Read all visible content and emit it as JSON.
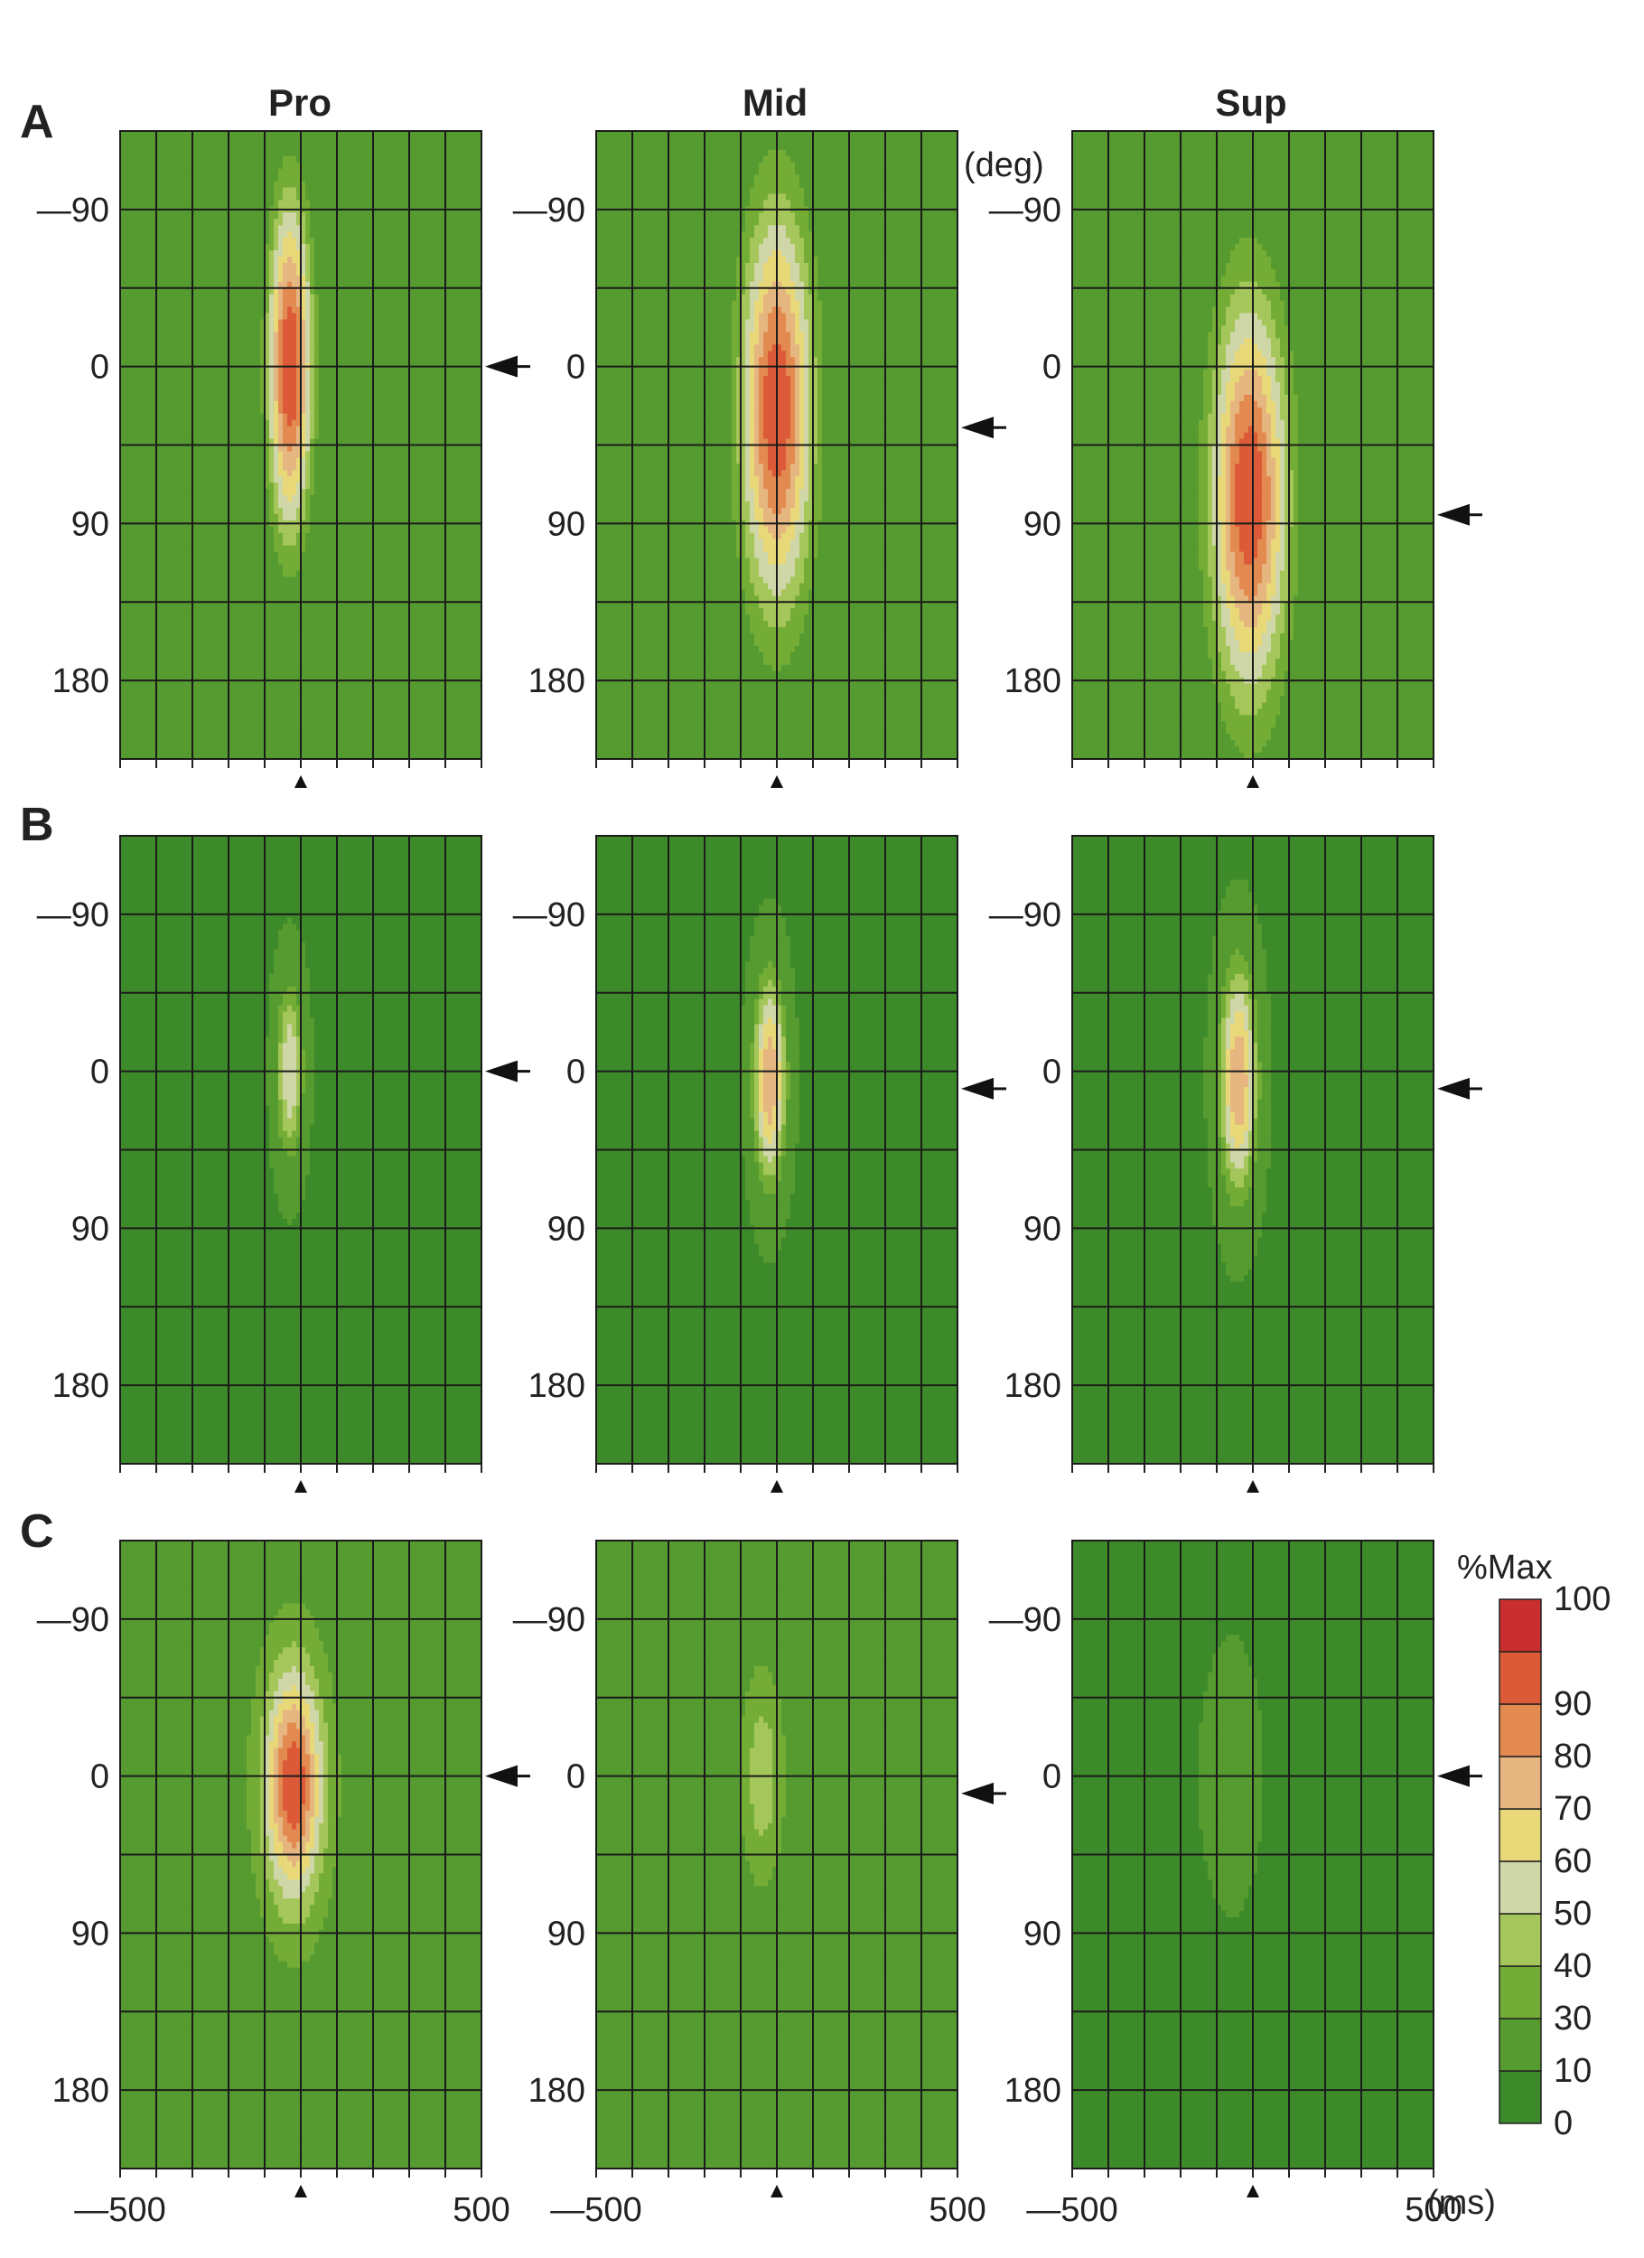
{
  "columns": [
    "Pro",
    "Mid",
    "Sup"
  ],
  "rows": [
    "A",
    "B",
    "C"
  ],
  "unit_angle": "(deg)",
  "unit_time": "(ms)",
  "colorbar": {
    "title": "%Max",
    "levels": [
      0,
      10,
      30,
      40,
      50,
      60,
      70,
      80,
      90,
      100
    ],
    "colors": [
      "#3d8a2a",
      "#559b30",
      "#74ad36",
      "#a5c65a",
      "#cfd7a8",
      "#e9d878",
      "#e6b680",
      "#e38a50",
      "#dc5a38",
      "#c92f2f"
    ]
  },
  "chart_data": {
    "type": "heatmap",
    "description_axes": {
      "ylabel": "(deg)",
      "xlabel": "(ms)",
      "yticks": [
        -90,
        0,
        90,
        180
      ],
      "xticks": [
        -500,
        500
      ],
      "ylim": [
        -135,
        225
      ],
      "xlim": [
        -500,
        500
      ],
      "y_inverted": true
    },
    "panels": [
      {
        "row": "A",
        "col": "Pro",
        "peak_value": 100,
        "peak_time_ms": -30,
        "peak_angle_deg": 0,
        "spread_angle_deg": 70,
        "spread_time_ms": 45,
        "background": 10,
        "arrow_angle_deg": 0
      },
      {
        "row": "A",
        "col": "Mid",
        "peak_value": 100,
        "peak_time_ms": 0,
        "peak_angle_deg": 25,
        "spread_angle_deg": 80,
        "spread_time_ms": 70,
        "background": 15,
        "arrow_angle_deg": 35
      },
      {
        "row": "A",
        "col": "Sup",
        "peak_value": 100,
        "peak_time_ms": -10,
        "peak_angle_deg": 75,
        "spread_angle_deg": 80,
        "spread_time_ms": 75,
        "background": 15,
        "arrow_angle_deg": 85
      },
      {
        "row": "B",
        "col": "Pro",
        "peak_value": 60,
        "peak_time_ms": -30,
        "peak_angle_deg": 0,
        "spread_angle_deg": 40,
        "spread_time_ms": 30,
        "background": 5,
        "arrow_angle_deg": 0
      },
      {
        "row": "B",
        "col": "Mid",
        "peak_value": 80,
        "peak_time_ms": -20,
        "peak_angle_deg": 5,
        "spread_angle_deg": 45,
        "spread_time_ms": 35,
        "background": 5,
        "arrow_angle_deg": 10
      },
      {
        "row": "B",
        "col": "Sup",
        "peak_value": 80,
        "peak_time_ms": -40,
        "peak_angle_deg": 5,
        "spread_angle_deg": 50,
        "spread_time_ms": 40,
        "background": 5,
        "arrow_angle_deg": 10
      },
      {
        "row": "C",
        "col": "Pro",
        "peak_value": 100,
        "peak_time_ms": -20,
        "peak_angle_deg": 5,
        "spread_angle_deg": 45,
        "spread_time_ms": 55,
        "background": 25,
        "arrow_angle_deg": 0
      },
      {
        "row": "C",
        "col": "Mid",
        "peak_value": 45,
        "peak_time_ms": -40,
        "peak_angle_deg": 0,
        "spread_angle_deg": 60,
        "spread_time_ms": 60,
        "background": 10,
        "arrow_angle_deg": 10
      },
      {
        "row": "C",
        "col": "Sup",
        "peak_value": 30,
        "peak_time_ms": -60,
        "peak_angle_deg": 0,
        "spread_angle_deg": 45,
        "spread_time_ms": 50,
        "background": 5,
        "arrow_angle_deg": 0
      }
    ]
  }
}
